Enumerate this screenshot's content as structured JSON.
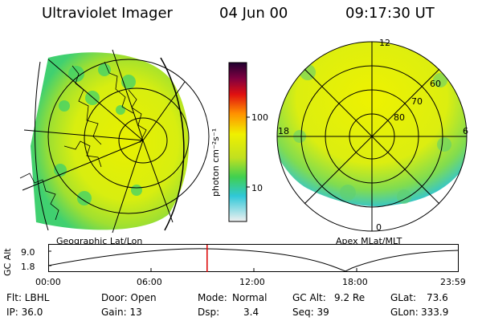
{
  "header": {
    "instrument": "Ultraviolet Imager",
    "date": "04 Jun 00",
    "time": "09:17:30 UT"
  },
  "colorbar": {
    "label": "photon cm⁻²s⁻¹",
    "ticks": [
      "100",
      "10"
    ]
  },
  "geo_panel": {
    "caption": "Geographic Lat/Lon"
  },
  "polar_panel": {
    "caption": "Apex MLat/MLT",
    "lat_labels": [
      "80",
      "70",
      "60"
    ],
    "mlt_labels": {
      "top": "12",
      "left": "18",
      "right": "6",
      "bottom": "0"
    }
  },
  "altitude_plot": {
    "ylabel": "GC Alt",
    "yticks": [
      "9.0",
      "1.8"
    ],
    "xticks": [
      "00:00",
      "06:00",
      "12:00",
      "18:00",
      "23:59"
    ],
    "marker_hour": 9.29,
    "marker_color": "#dd0000"
  },
  "status": {
    "row1": {
      "flt": "Flt: LBHL",
      "door": "Door: Open",
      "mode_label": "Mode:",
      "mode_value": "Normal",
      "gcalt_label": "GC Alt:",
      "gcalt_value": "9.2 Re",
      "glat_label": "GLat:",
      "glat_value": "73.6"
    },
    "row2": {
      "ip": "IP: 36.0",
      "gain": "Gain: 13",
      "dsp_label": "Dsp:",
      "dsp_value": "3.4",
      "seq": "Seq: 39",
      "glon_label": "GLon:",
      "glon_value": "333.9"
    }
  }
}
